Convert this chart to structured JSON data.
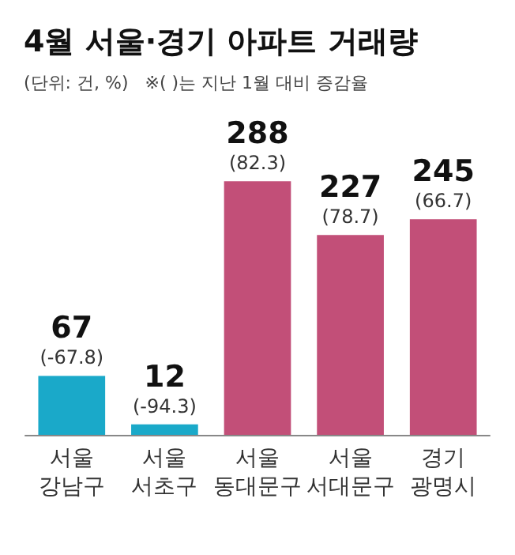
{
  "chart_data": {
    "type": "bar",
    "title": "4월 서울·경기 아파트 거래량",
    "subtitle": "(단위: 건, %)   ※( )는 지난 1월 대비 증감율",
    "categories": [
      "서울\n강남구",
      "서울\n서초구",
      "서울\n동대문구",
      "서울\n서대문구",
      "경기\n광명시"
    ],
    "values": [
      67,
      12,
      288,
      227,
      245
    ],
    "colors": [
      "#1aa9c9",
      "#1aa9c9",
      "#c24f78",
      "#c24f78",
      "#c24f78"
    ],
    "value_labels": [
      "67\n(-67.8)",
      "12\n(-94.3)",
      "288\n(82.3)",
      "227\n(78.7)",
      "245\n(66.7)"
    ]
  }
}
